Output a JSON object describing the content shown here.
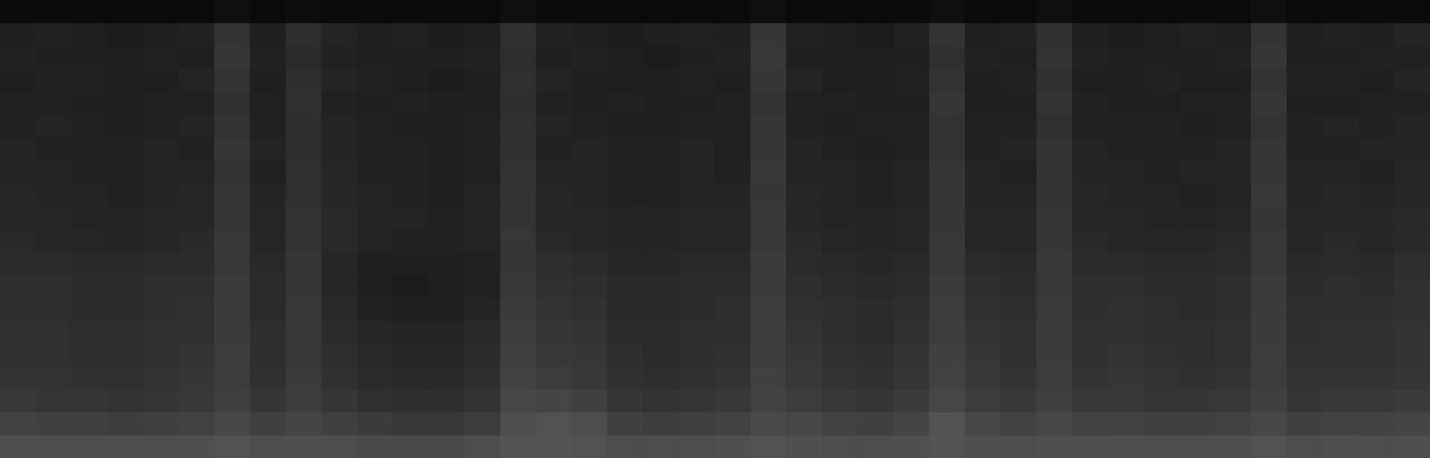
{
  "chart_data": {
    "type": "heatmap",
    "tick_labels": false,
    "grid": false,
    "cells": [
      [
        4,
        4,
        4,
        4,
        4,
        4,
        6,
        4,
        5,
        4,
        4,
        4,
        4,
        4,
        6,
        4,
        4,
        4,
        4,
        4,
        4,
        6,
        4,
        4,
        4,
        4,
        6,
        4,
        4,
        6,
        4,
        4,
        4,
        4,
        4,
        6,
        4,
        4,
        4,
        4
      ],
      [
        12,
        13,
        12,
        11,
        12,
        13,
        20,
        12,
        18,
        14,
        12,
        13,
        11,
        12,
        19,
        13,
        12,
        11,
        12,
        13,
        12,
        21,
        13,
        12,
        11,
        13,
        20,
        12,
        13,
        19,
        12,
        11,
        12,
        13,
        12,
        20,
        12,
        13,
        12,
        14
      ],
      [
        13,
        12,
        12,
        12,
        13,
        12,
        21,
        13,
        17,
        13,
        12,
        12,
        12,
        13,
        18,
        12,
        13,
        12,
        11,
        12,
        13,
        22,
        12,
        12,
        12,
        12,
        19,
        13,
        12,
        20,
        13,
        12,
        12,
        12,
        13,
        21,
        12,
        12,
        13,
        13
      ],
      [
        12,
        13,
        13,
        12,
        12,
        14,
        20,
        12,
        18,
        14,
        13,
        12,
        11,
        12,
        19,
        14,
        12,
        12,
        12,
        13,
        12,
        21,
        14,
        12,
        12,
        13,
        20,
        12,
        13,
        19,
        12,
        12,
        13,
        12,
        12,
        20,
        13,
        13,
        12,
        14
      ],
      [
        13,
        13,
        12,
        12,
        13,
        13,
        19,
        13,
        19,
        13,
        12,
        13,
        12,
        12,
        18,
        13,
        12,
        13,
        12,
        12,
        13,
        20,
        13,
        13,
        12,
        12,
        21,
        12,
        12,
        20,
        13,
        12,
        12,
        13,
        13,
        21,
        12,
        12,
        13,
        13
      ],
      [
        13,
        14,
        13,
        12,
        13,
        14,
        20,
        13,
        18,
        14,
        13,
        12,
        12,
        13,
        19,
        14,
        13,
        12,
        12,
        13,
        13,
        21,
        13,
        12,
        13,
        13,
        20,
        13,
        13,
        19,
        13,
        13,
        13,
        12,
        13,
        20,
        13,
        14,
        13,
        14
      ],
      [
        14,
        13,
        13,
        13,
        14,
        13,
        21,
        14,
        18,
        14,
        13,
        13,
        12,
        13,
        19,
        13,
        14,
        13,
        13,
        14,
        13,
        21,
        14,
        13,
        12,
        13,
        20,
        13,
        14,
        20,
        14,
        13,
        13,
        13,
        14,
        21,
        13,
        13,
        14,
        14
      ],
      [
        14,
        14,
        13,
        13,
        14,
        14,
        20,
        13,
        19,
        15,
        13,
        13,
        12,
        13,
        20,
        14,
        14,
        13,
        13,
        14,
        13,
        22,
        14,
        14,
        13,
        14,
        21,
        14,
        13,
        20,
        14,
        14,
        13,
        14,
        14,
        21,
        14,
        14,
        13,
        15
      ],
      [
        15,
        14,
        14,
        13,
        14,
        15,
        21,
        14,
        19,
        15,
        14,
        13,
        12,
        14,
        20,
        15,
        14,
        13,
        13,
        14,
        14,
        21,
        15,
        14,
        13,
        14,
        21,
        14,
        14,
        20,
        15,
        14,
        14,
        13,
        14,
        22,
        14,
        15,
        14,
        15
      ],
      [
        15,
        15,
        14,
        14,
        15,
        15,
        21,
        15,
        20,
        16,
        14,
        14,
        13,
        14,
        20,
        15,
        15,
        14,
        14,
        15,
        15,
        22,
        15,
        14,
        14,
        15,
        21,
        15,
        15,
        21,
        15,
        15,
        14,
        14,
        15,
        21,
        15,
        15,
        15,
        16
      ],
      [
        16,
        15,
        15,
        14,
        15,
        16,
        22,
        15,
        20,
        16,
        14,
        13,
        13,
        14,
        21,
        16,
        15,
        14,
        14,
        15,
        15,
        22,
        16,
        15,
        14,
        15,
        22,
        15,
        15,
        21,
        16,
        15,
        15,
        15,
        16,
        22,
        15,
        16,
        15,
        16
      ],
      [
        17,
        17,
        16,
        16,
        17,
        17,
        22,
        16,
        21,
        15,
        12,
        12,
        12,
        13,
        21,
        18,
        17,
        15,
        15,
        16,
        16,
        23,
        17,
        16,
        15,
        16,
        22,
        17,
        16,
        22,
        17,
        17,
        16,
        16,
        17,
        22,
        16,
        17,
        16,
        18
      ],
      [
        18,
        18,
        17,
        17,
        18,
        18,
        23,
        17,
        21,
        15,
        12,
        11,
        12,
        13,
        22,
        19,
        18,
        16,
        16,
        17,
        17,
        23,
        18,
        17,
        16,
        17,
        23,
        18,
        17,
        22,
        18,
        18,
        17,
        17,
        18,
        23,
        17,
        18,
        17,
        19
      ],
      [
        18,
        18,
        17,
        17,
        18,
        19,
        23,
        17,
        22,
        16,
        13,
        12,
        12,
        14,
        23,
        20,
        19,
        16,
        16,
        17,
        18,
        24,
        19,
        18,
        17,
        18,
        24,
        19,
        18,
        23,
        18,
        19,
        18,
        17,
        18,
        23,
        18,
        18,
        18,
        19
      ],
      [
        19,
        19,
        18,
        18,
        19,
        19,
        23,
        18,
        22,
        17,
        15,
        14,
        14,
        16,
        24,
        21,
        20,
        17,
        17,
        18,
        18,
        24,
        20,
        18,
        17,
        19,
        24,
        20,
        19,
        23,
        19,
        19,
        18,
        18,
        19,
        23,
        18,
        19,
        19,
        20
      ],
      [
        19,
        19,
        18,
        18,
        19,
        20,
        24,
        18,
        22,
        18,
        16,
        15,
        15,
        17,
        25,
        22,
        21,
        18,
        17,
        18,
        19,
        24,
        21,
        19,
        18,
        20,
        25,
        21,
        19,
        23,
        19,
        20,
        19,
        18,
        19,
        24,
        19,
        19,
        19,
        20
      ],
      [
        20,
        20,
        19,
        19,
        20,
        21,
        24,
        19,
        23,
        19,
        17,
        16,
        16,
        18,
        26,
        24,
        22,
        19,
        18,
        19,
        20,
        25,
        22,
        20,
        19,
        21,
        26,
        22,
        20,
        24,
        20,
        21,
        20,
        19,
        20,
        24,
        20,
        20,
        20,
        21
      ],
      [
        22,
        21,
        21,
        20,
        21,
        22,
        25,
        21,
        24,
        21,
        19,
        18,
        18,
        20,
        28,
        27,
        25,
        21,
        20,
        21,
        22,
        26,
        24,
        22,
        21,
        23,
        28,
        24,
        22,
        25,
        22,
        22,
        21,
        21,
        22,
        25,
        21,
        22,
        22,
        23
      ],
      [
        26,
        25,
        25,
        24,
        25,
        26,
        28,
        25,
        27,
        25,
        23,
        22,
        22,
        24,
        31,
        32,
        30,
        25,
        24,
        25,
        26,
        29,
        28,
        26,
        25,
        27,
        32,
        28,
        26,
        28,
        26,
        26,
        25,
        25,
        26,
        28,
        25,
        26,
        26,
        27
      ],
      [
        31,
        30,
        30,
        30,
        30,
        31,
        32,
        30,
        31,
        30,
        29,
        29,
        29,
        30,
        33,
        33,
        32,
        30,
        30,
        30,
        31,
        32,
        31,
        30,
        30,
        31,
        33,
        31,
        30,
        31,
        30,
        31,
        30,
        30,
        31,
        32,
        30,
        31,
        30,
        31
      ]
    ]
  }
}
